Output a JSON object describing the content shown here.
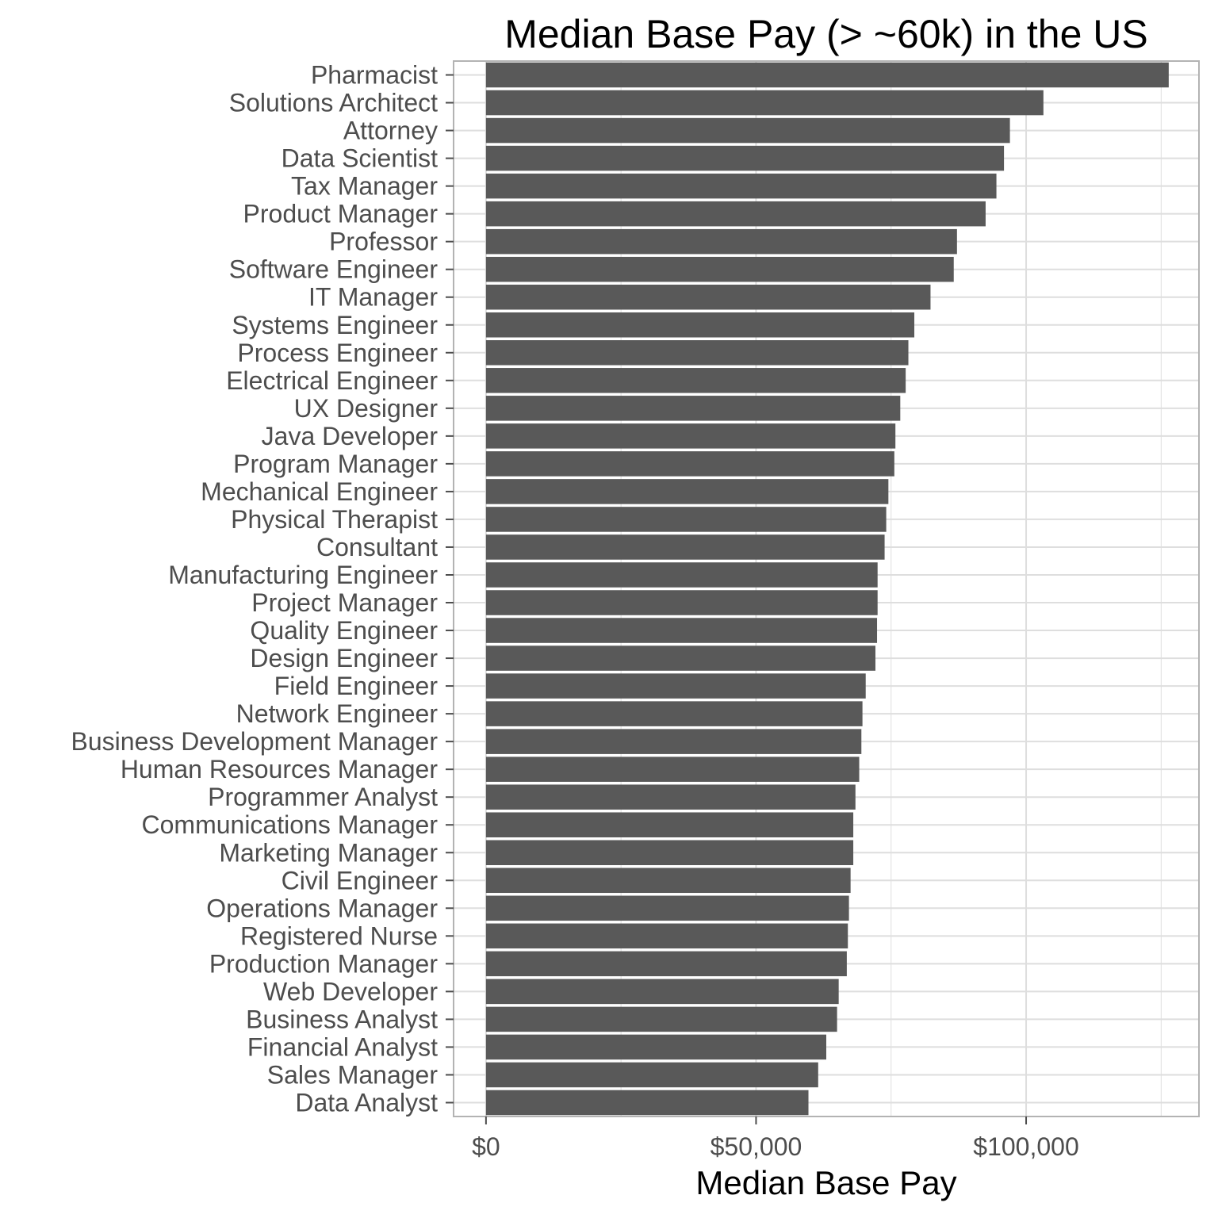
{
  "chart_data": {
    "type": "bar",
    "orientation": "horizontal",
    "title": "Median Base Pay (> ~60k) in the US",
    "xlabel": "Median Base Pay",
    "ylabel": "",
    "xlim": [
      -6000,
      132000
    ],
    "x_ticks": [
      {
        "value": 0,
        "label": "$0"
      },
      {
        "value": 50000,
        "label": "$50,000"
      },
      {
        "value": 100000,
        "label": "$100,000"
      }
    ],
    "x_minor_ticks": [
      25000,
      75000,
      125000
    ],
    "grid": true,
    "bar_color": "#595959",
    "panel_border_color": "#b3b3b3",
    "grid_color": "#dedede",
    "categories": [
      "Pharmacist",
      "Solutions Architect",
      "Attorney",
      "Data Scientist",
      "Tax Manager",
      "Product Manager",
      "Professor",
      "Software Engineer",
      "IT Manager",
      "Systems Engineer",
      "Process Engineer",
      "Electrical Engineer",
      "UX Designer",
      "Java Developer",
      "Program Manager",
      "Mechanical Engineer",
      "Physical Therapist",
      "Consultant",
      "Manufacturing Engineer",
      "Project Manager",
      "Quality Engineer",
      "Design Engineer",
      "Field Engineer",
      "Network Engineer",
      "Business Development Manager",
      "Human Resources Manager",
      "Programmer Analyst",
      "Communications Manager",
      "Marketing Manager",
      "Civil Engineer",
      "Operations Manager",
      "Registered Nurse",
      "Production Manager",
      "Web Developer",
      "Business Analyst",
      "Financial Analyst",
      "Sales Manager",
      "Data Analyst"
    ],
    "values": [
      126400,
      103200,
      97000,
      95900,
      94500,
      92500,
      87200,
      86600,
      82300,
      79300,
      78200,
      77700,
      76700,
      75800,
      75600,
      74500,
      74100,
      73800,
      72500,
      72500,
      72400,
      72100,
      70300,
      69700,
      69500,
      69100,
      68400,
      68000,
      68000,
      67500,
      67200,
      67000,
      66800,
      65300,
      65000,
      63000,
      61500,
      59700
    ]
  }
}
